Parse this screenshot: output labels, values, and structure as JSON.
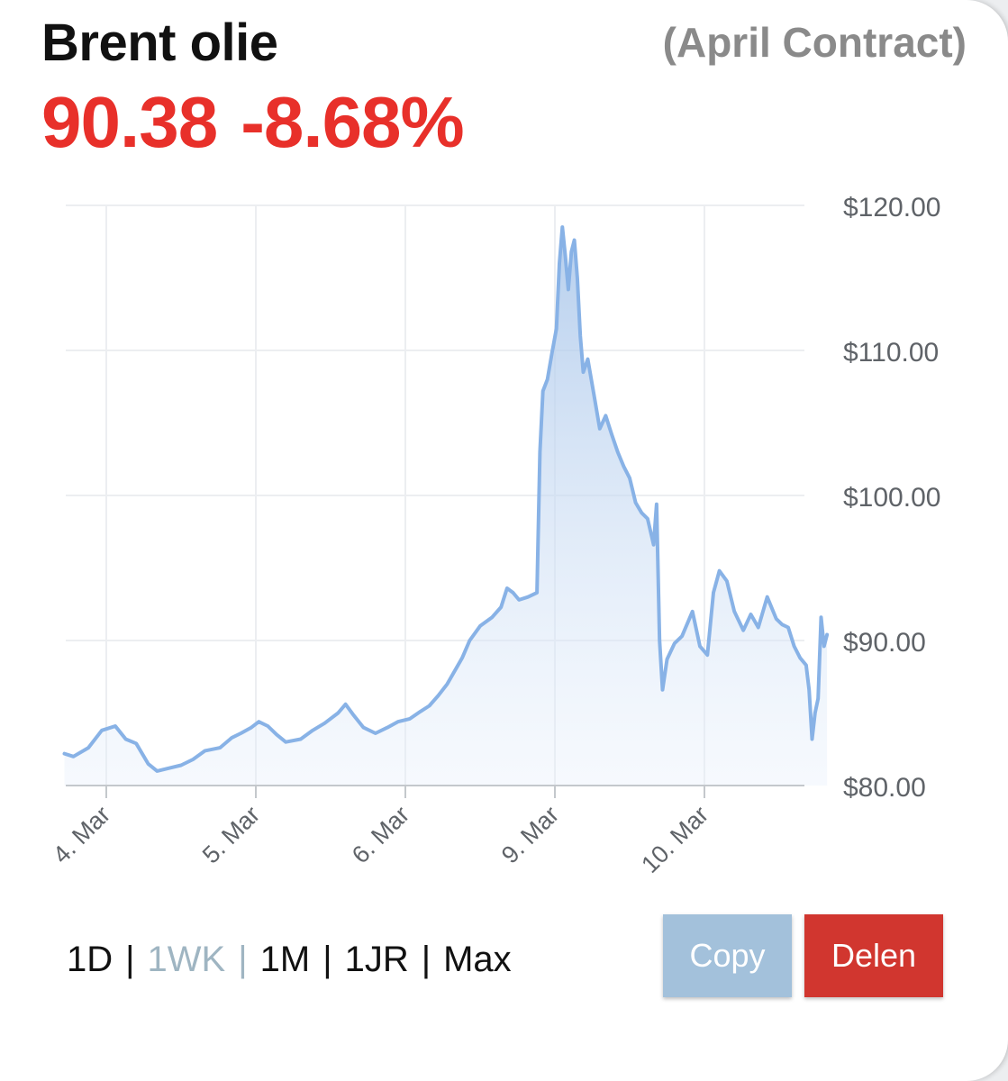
{
  "header": {
    "title": "Brent olie",
    "contract": "(April Contract)",
    "price": "90.38",
    "change": "-8.68%",
    "quote_color": "#e8302a"
  },
  "chart_data": {
    "type": "area",
    "x_categories": [
      "4. Mar",
      "5. Mar",
      "6. Mar",
      "9. Mar",
      "10. Mar"
    ],
    "ylim": [
      80,
      120
    ],
    "y_ticks": [
      "$120.00",
      "$110.00",
      "$100.00",
      "$90.00",
      "$80.00"
    ],
    "line_color": "#88b2e6",
    "grid": true,
    "points": [
      [
        -0.28,
        82.2
      ],
      [
        -0.22,
        82.0
      ],
      [
        -0.12,
        82.6
      ],
      [
        -0.03,
        83.8
      ],
      [
        0.06,
        84.1
      ],
      [
        0.13,
        83.2
      ],
      [
        0.2,
        82.9
      ],
      [
        0.28,
        81.5
      ],
      [
        0.34,
        81.0
      ],
      [
        0.42,
        81.2
      ],
      [
        0.5,
        81.4
      ],
      [
        0.58,
        81.8
      ],
      [
        0.66,
        82.4
      ],
      [
        0.76,
        82.6
      ],
      [
        0.84,
        83.3
      ],
      [
        0.9,
        83.6
      ],
      [
        0.97,
        84.0
      ],
      [
        1.02,
        84.4
      ],
      [
        1.08,
        84.1
      ],
      [
        1.14,
        83.5
      ],
      [
        1.2,
        83.0
      ],
      [
        1.3,
        83.2
      ],
      [
        1.38,
        83.8
      ],
      [
        1.46,
        84.3
      ],
      [
        1.55,
        85.0
      ],
      [
        1.6,
        85.6
      ],
      [
        1.65,
        84.9
      ],
      [
        1.72,
        84.0
      ],
      [
        1.8,
        83.6
      ],
      [
        1.88,
        84.0
      ],
      [
        1.95,
        84.4
      ],
      [
        2.03,
        84.6
      ],
      [
        2.1,
        85.1
      ],
      [
        2.16,
        85.5
      ],
      [
        2.22,
        86.2
      ],
      [
        2.28,
        87.0
      ],
      [
        2.33,
        87.9
      ],
      [
        2.38,
        88.8
      ],
      [
        2.43,
        90.0
      ],
      [
        2.5,
        91.0
      ],
      [
        2.58,
        91.6
      ],
      [
        2.64,
        92.3
      ],
      [
        2.68,
        93.6
      ],
      [
        2.72,
        93.3
      ],
      [
        2.76,
        92.8
      ],
      [
        2.82,
        93.0
      ],
      [
        2.88,
        93.3
      ],
      [
        2.9,
        103.0
      ],
      [
        2.92,
        107.2
      ],
      [
        2.95,
        108.0
      ],
      [
        2.98,
        109.8
      ],
      [
        3.01,
        111.5
      ],
      [
        3.03,
        116.0
      ],
      [
        3.05,
        118.5
      ],
      [
        3.07,
        116.5
      ],
      [
        3.09,
        114.2
      ],
      [
        3.11,
        116.8
      ],
      [
        3.13,
        117.6
      ],
      [
        3.15,
        115.0
      ],
      [
        3.17,
        111.0
      ],
      [
        3.19,
        108.5
      ],
      [
        3.22,
        109.4
      ],
      [
        3.26,
        107.0
      ],
      [
        3.3,
        104.6
      ],
      [
        3.34,
        105.5
      ],
      [
        3.38,
        104.2
      ],
      [
        3.42,
        103.0
      ],
      [
        3.46,
        102.0
      ],
      [
        3.5,
        101.2
      ],
      [
        3.54,
        99.5
      ],
      [
        3.58,
        98.8
      ],
      [
        3.62,
        98.4
      ],
      [
        3.66,
        96.6
      ],
      [
        3.68,
        99.4
      ],
      [
        3.7,
        90.0
      ],
      [
        3.72,
        86.6
      ],
      [
        3.75,
        88.7
      ],
      [
        3.8,
        89.8
      ],
      [
        3.85,
        90.3
      ],
      [
        3.92,
        92.0
      ],
      [
        3.97,
        89.6
      ],
      [
        4.02,
        89.0
      ],
      [
        4.06,
        93.3
      ],
      [
        4.1,
        94.8
      ],
      [
        4.15,
        94.1
      ],
      [
        4.2,
        92.0
      ],
      [
        4.26,
        90.7
      ],
      [
        4.31,
        91.8
      ],
      [
        4.36,
        90.9
      ],
      [
        4.42,
        93.0
      ],
      [
        4.48,
        91.5
      ],
      [
        4.52,
        91.1
      ],
      [
        4.56,
        90.9
      ],
      [
        4.6,
        89.6
      ],
      [
        4.64,
        88.8
      ],
      [
        4.68,
        88.3
      ],
      [
        4.7,
        86.6
      ],
      [
        4.72,
        83.2
      ],
      [
        4.74,
        85.0
      ],
      [
        4.76,
        86.0
      ],
      [
        4.78,
        91.6
      ],
      [
        4.8,
        89.6
      ],
      [
        4.82,
        90.4
      ]
    ]
  },
  "periods": {
    "items": [
      {
        "label": "1D"
      },
      {
        "label": "1WK",
        "active": true
      },
      {
        "label": "1M"
      },
      {
        "label": "1JR"
      },
      {
        "label": "Max"
      }
    ],
    "separator": "|"
  },
  "buttons": {
    "copy": {
      "label": "Copy",
      "color": "#a3c1db"
    },
    "share": {
      "label": "Delen",
      "color": "#d1362f"
    }
  }
}
